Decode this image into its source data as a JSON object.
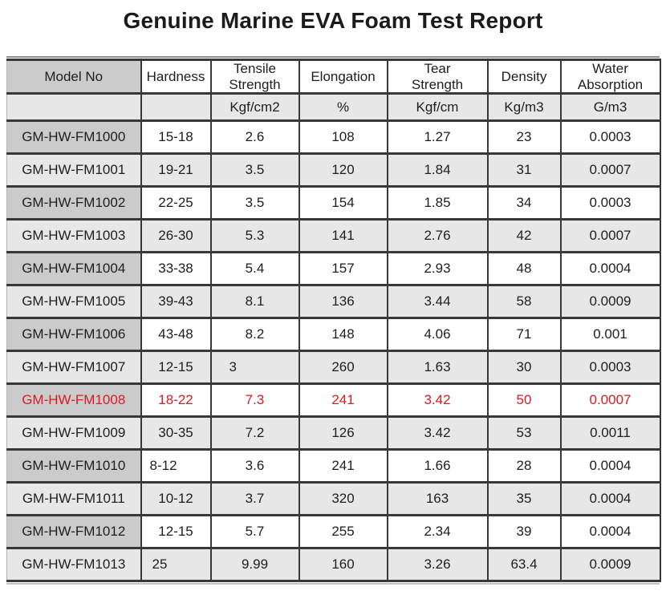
{
  "title": "Genuine Marine EVA Foam Test Report",
  "colors": {
    "highlight_red": "#e0181f",
    "header_model_bg": "#cbcbcb",
    "model_cell_bg": "#cbcbcb",
    "alt_row_bg": "#e7e7e7",
    "border_dark": "#383838"
  },
  "table": {
    "columns": [
      {
        "id": "model-no",
        "label": "Model No",
        "unit": ""
      },
      {
        "id": "hardness",
        "label": "Hardness",
        "unit": ""
      },
      {
        "id": "tensile-strength",
        "label": "Tensile\nStrength",
        "unit": "Kgf/cm2"
      },
      {
        "id": "elongation",
        "label": "Elongation",
        "unit": "%"
      },
      {
        "id": "tear-strength",
        "label": "Tear\nStrength",
        "unit": "Kgf/cm"
      },
      {
        "id": "density",
        "label": "Density",
        "unit": "Kg/m3"
      },
      {
        "id": "water-absorption",
        "label": "Water\nAbsorption",
        "unit": "G/m3"
      }
    ],
    "rows": [
      {
        "cells": [
          "GM-HW-FM1000",
          "15-18",
          "2.6",
          "108",
          "1.27",
          "23",
          "0.0003"
        ],
        "highlight": false
      },
      {
        "cells": [
          "GM-HW-FM1001",
          "19-21",
          "3.5",
          "120",
          "1.84",
          "31",
          "0.0007"
        ],
        "highlight": false
      },
      {
        "cells": [
          "GM-HW-FM1002",
          "22-25",
          "3.5",
          "154",
          "1.85",
          "34",
          "0.0003"
        ],
        "highlight": false
      },
      {
        "cells": [
          "GM-HW-FM1003",
          "26-30",
          "5.3",
          "141",
          "2.76",
          "42",
          "0.0007"
        ],
        "highlight": false
      },
      {
        "cells": [
          "GM-HW-FM1004",
          "33-38",
          "5.4",
          "157",
          "2.93",
          "48",
          "0.0004"
        ],
        "highlight": false
      },
      {
        "cells": [
          "GM-HW-FM1005",
          "39-43",
          "8.1",
          "136",
          "3.44",
          "58",
          "0.0009"
        ],
        "highlight": false
      },
      {
        "cells": [
          "GM-HW-FM1006",
          "43-48",
          "8.2",
          "148",
          "4.06",
          "71",
          "0.001"
        ],
        "highlight": false
      },
      {
        "cells": [
          "GM-HW-FM1007",
          "12-15",
          "3",
          "260",
          "1.63",
          "30",
          "0.0003"
        ],
        "highlight": false
      },
      {
        "cells": [
          "GM-HW-FM1008",
          "18-22",
          "7.3",
          "241",
          "3.42",
          "50",
          "0.0007"
        ],
        "highlight": true
      },
      {
        "cells": [
          "GM-HW-FM1009",
          "30-35",
          "7.2",
          "126",
          "3.42",
          "53",
          "0.0011"
        ],
        "highlight": false
      },
      {
        "cells": [
          "GM-HW-FM1010",
          "8-12",
          "3.6",
          "241",
          "1.66",
          "28",
          "0.0004"
        ],
        "highlight": false
      },
      {
        "cells": [
          "GM-HW-FM1011",
          "10-12",
          "3.7",
          "320",
          "163",
          "35",
          "0.0004"
        ],
        "highlight": false
      },
      {
        "cells": [
          "GM-HW-FM1012",
          "12-15",
          "5.7",
          "255",
          "2.34",
          "39",
          "0.0004"
        ],
        "highlight": false
      },
      {
        "cells": [
          "GM-HW-FM1013",
          "25",
          "9.99",
          "160",
          "3.26",
          "63.4",
          "0.0009"
        ],
        "highlight": false
      }
    ],
    "cell_offsets": [
      {
        "row": 7,
        "col": 2,
        "pad": 22
      },
      {
        "row": 10,
        "col": 1,
        "pad": 10
      },
      {
        "row": 13,
        "col": 1,
        "pad": 13
      }
    ]
  }
}
